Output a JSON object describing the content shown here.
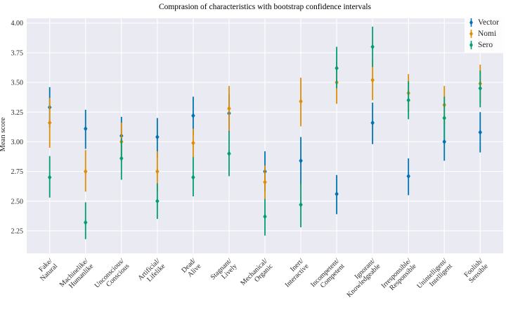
{
  "figure": {
    "background": "#ffffff",
    "plot_background": "#eaeaf2",
    "grid_color": "#ffffff",
    "tick_color": "#262626"
  },
  "chart_data": {
    "type": "errorbar",
    "title": "Comprasion of characteristics with bootstrap confidence intervals",
    "xlabel": "",
    "ylabel": "Mean score",
    "grid": true,
    "legend_position": "upper right",
    "ylim": [
      2.06,
      4.04
    ],
    "yticks": [
      2.25,
      2.5,
      2.75,
      3.0,
      3.25,
      3.5,
      3.75,
      4.0
    ],
    "categories": [
      "Fake/Natural",
      "Machinelike/Humanlike",
      "Unconscious/Conscious",
      "Artificial/Lifelike",
      "Dead/Alive",
      "Stagnant/Lively",
      "Mechanical/Organic",
      "Inert/Interactive",
      "Incompetent/Competent",
      "Ignorant/Knowledgeable",
      "Irresponsible/Responsible",
      "Unintelligent/Intelligent",
      "Foolish/Sensible"
    ],
    "series": [
      {
        "name": "Vector",
        "color": "#0173b2",
        "marker": "diamond",
        "values": [
          3.29,
          3.11,
          3.05,
          3.04,
          3.22,
          3.24,
          2.75,
          2.84,
          2.56,
          3.16,
          2.71,
          3.0,
          3.08
        ],
        "ci_low": [
          3.12,
          2.94,
          2.88,
          2.87,
          3.06,
          3.08,
          2.58,
          2.64,
          2.39,
          2.98,
          2.55,
          2.84,
          2.91
        ],
        "ci_high": [
          3.46,
          3.27,
          3.21,
          3.2,
          3.38,
          3.4,
          2.92,
          3.04,
          2.72,
          3.33,
          2.86,
          3.17,
          3.25
        ]
      },
      {
        "name": "Nomi",
        "color": "#de8f05",
        "marker": "diamond",
        "values": [
          3.16,
          2.75,
          3.0,
          2.75,
          2.99,
          3.28,
          2.66,
          3.34,
          3.5,
          3.52,
          3.41,
          3.31,
          3.49
        ],
        "ci_low": [
          2.95,
          2.58,
          2.83,
          2.58,
          2.86,
          3.09,
          2.52,
          3.13,
          3.32,
          3.35,
          3.25,
          3.15,
          3.33
        ],
        "ci_high": [
          3.37,
          2.93,
          3.16,
          2.92,
          3.11,
          3.47,
          2.8,
          3.54,
          3.68,
          3.69,
          3.57,
          3.47,
          3.65
        ]
      },
      {
        "name": "Sero",
        "color": "#029e73",
        "marker": "diamond",
        "values": [
          2.7,
          2.32,
          2.86,
          2.5,
          2.7,
          2.9,
          2.37,
          2.47,
          3.62,
          3.8,
          3.35,
          3.2,
          3.45
        ],
        "ci_low": [
          2.53,
          2.18,
          2.68,
          2.35,
          2.54,
          2.71,
          2.21,
          2.28,
          3.45,
          3.63,
          3.19,
          3.02,
          3.29
        ],
        "ci_high": [
          2.88,
          2.49,
          3.03,
          2.65,
          2.87,
          3.08,
          2.52,
          2.66,
          3.8,
          3.97,
          3.51,
          3.38,
          3.6
        ]
      }
    ]
  }
}
